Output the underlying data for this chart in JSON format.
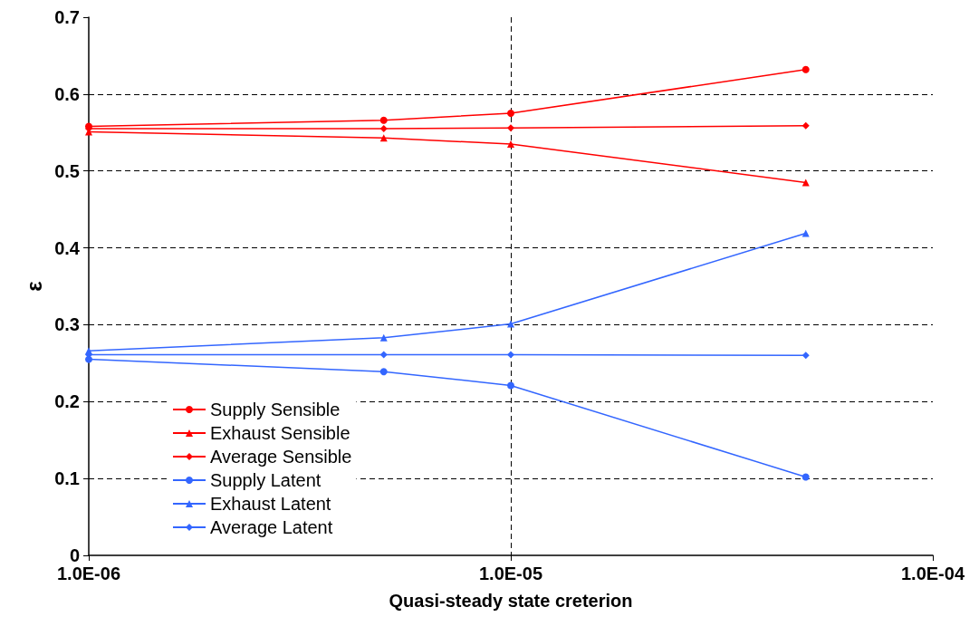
{
  "chart_data": {
    "type": "line",
    "xlabel": "Quasi-steady state creterion",
    "ylabel": "ε",
    "log": "x",
    "grid": true,
    "legend": "bottom left",
    "line_style": "solid",
    "xlim": [
      1e-06,
      0.0001
    ],
    "xticks": [
      {
        "value": 1e-06,
        "label": "1.0E-06"
      },
      {
        "value": 1e-05,
        "label": "1.0E-05"
      },
      {
        "value": 0.0001,
        "label": "1.0E-04"
      }
    ],
    "ylim": [
      0,
      0.7
    ],
    "yticks": [
      0,
      0.1,
      0.2,
      0.3,
      0.4,
      0.5,
      0.6,
      0.7
    ],
    "x": [
      1e-06,
      5e-06,
      1e-05,
      5e-05
    ],
    "series": [
      {
        "name": "Supply Sensible",
        "color": "#ff0000",
        "marker": "circle",
        "values": [
          0.558,
          0.566,
          0.575,
          0.632
        ]
      },
      {
        "name": "Exhaust Sensible",
        "color": "#ff0000",
        "marker": "triangle",
        "values": [
          0.551,
          0.543,
          0.535,
          0.485
        ]
      },
      {
        "name": "Average Sensible",
        "color": "#ff0000",
        "marker": "diamond",
        "values": [
          0.555,
          0.555,
          0.556,
          0.559
        ]
      },
      {
        "name": "Supply Latent",
        "color": "#3366ff",
        "marker": "circle",
        "values": [
          0.255,
          0.239,
          0.221,
          0.102
        ]
      },
      {
        "name": "Exhaust Latent",
        "color": "#3366ff",
        "marker": "triangle",
        "values": [
          0.266,
          0.283,
          0.301,
          0.419
        ]
      },
      {
        "name": "Average Latent",
        "color": "#3366ff",
        "marker": "diamond",
        "values": [
          0.261,
          0.261,
          0.261,
          0.26
        ]
      }
    ]
  }
}
